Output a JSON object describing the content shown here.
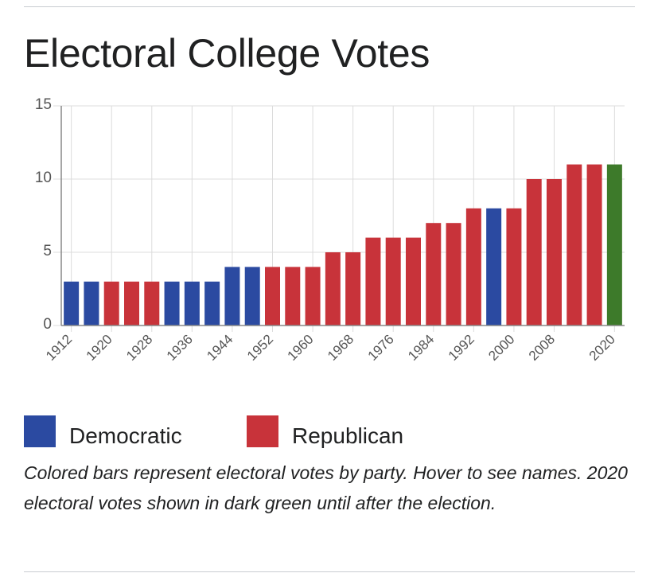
{
  "title": "Electoral College Votes",
  "legend": [
    {
      "label": "Democratic",
      "color": "#2b4aa1"
    },
    {
      "label": "Republican",
      "color": "#c8333a"
    }
  ],
  "caption": "Colored bars represent electoral votes by party. Hover to see names. 2020 electoral votes shown in dark green until after the election.",
  "colors": {
    "democratic": "#2b4aa1",
    "republican": "#c8333a",
    "pending": "#3d7a2a"
  },
  "chart_data": {
    "type": "bar",
    "title": "",
    "xlabel": "",
    "ylabel": "",
    "ylim": [
      0,
      15
    ],
    "yticks": [
      0,
      5,
      10,
      15
    ],
    "grid": true,
    "categories": [
      1912,
      1916,
      1920,
      1924,
      1928,
      1932,
      1936,
      1940,
      1944,
      1948,
      1952,
      1956,
      1960,
      1964,
      1968,
      1972,
      1976,
      1980,
      1984,
      1988,
      1992,
      1996,
      2000,
      2004,
      2008,
      2012,
      2016,
      2020
    ],
    "xtick_labels": [
      "1912",
      "1920",
      "1928",
      "1936",
      "1944",
      "1952",
      "1960",
      "1968",
      "1976",
      "1984",
      "1992",
      "2000",
      "2008",
      "2020"
    ],
    "values": [
      3,
      3,
      3,
      3,
      3,
      3,
      3,
      3,
      4,
      4,
      4,
      4,
      4,
      5,
      5,
      6,
      6,
      6,
      7,
      7,
      8,
      8,
      8,
      10,
      10,
      11,
      11,
      11
    ],
    "party": [
      "democratic",
      "democratic",
      "republican",
      "republican",
      "republican",
      "democratic",
      "democratic",
      "democratic",
      "democratic",
      "democratic",
      "republican",
      "republican",
      "republican",
      "republican",
      "republican",
      "republican",
      "republican",
      "republican",
      "republican",
      "republican",
      "republican",
      "democratic",
      "republican",
      "republican",
      "republican",
      "republican",
      "republican",
      "pending"
    ]
  }
}
